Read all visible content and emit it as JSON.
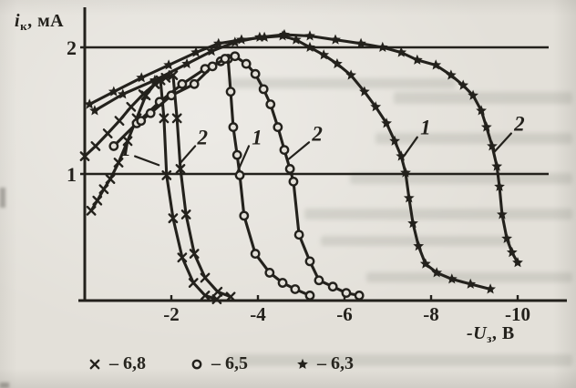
{
  "ink_color": "#23211c",
  "paper_color": "#e3e0d9",
  "chart_data": {
    "type": "line",
    "title": "",
    "ylabel": "iк, мА",
    "xlabel": "-Uз, В",
    "ylabel_parts": {
      "main": "i",
      "sub": "к",
      "unit": ", мА"
    },
    "xlabel_parts": {
      "main": "-U",
      "sub": "з",
      "unit": ", В"
    },
    "xlim": [
      0,
      -11.3
    ],
    "ylim": [
      0,
      2.32
    ],
    "grid": "horizontal gridlines at 1 and 2 mA",
    "x_ticks": [
      {
        "value": -2,
        "label": "-2"
      },
      {
        "value": -4,
        "label": "-4"
      },
      {
        "value": -6,
        "label": "-6"
      },
      {
        "value": -8,
        "label": "-8"
      },
      {
        "value": -10,
        "label": "-10"
      }
    ],
    "y_ticks": [
      {
        "value": 2,
        "label": "2"
      },
      {
        "value": 1,
        "label": "1"
      }
    ],
    "legend_position": "below axis",
    "legend": [
      {
        "marker": "x-cross",
        "label": "– 6,8"
      },
      {
        "marker": "open-circle",
        "label": "– 6,5"
      },
      {
        "marker": "star",
        "label": "– 6,3"
      }
    ],
    "series": [
      {
        "name": "6,8 curve 1",
        "marker": "x-cross",
        "points": [
          [
            -0.15,
            0.71
          ],
          [
            -0.29,
            0.79
          ],
          [
            -0.44,
            0.88
          ],
          [
            -0.59,
            0.96
          ],
          [
            -0.78,
            1.09
          ],
          [
            -0.99,
            1.26
          ],
          [
            -1.2,
            1.44
          ],
          [
            -1.41,
            1.62
          ],
          [
            -1.62,
            1.71
          ],
          [
            -1.75,
            1.74
          ],
          [
            -1.83,
            1.44
          ],
          [
            -1.89,
            0.99
          ],
          [
            -2.04,
            0.65
          ],
          [
            -2.25,
            0.34
          ],
          [
            -2.51,
            0.14
          ],
          [
            -2.78,
            0.04
          ],
          [
            -3.05,
            0.01
          ]
        ]
      },
      {
        "name": "6,8 curve 2",
        "marker": "x-cross",
        "points": [
          [
            0,
            1.14
          ],
          [
            -0.25,
            1.22
          ],
          [
            -0.53,
            1.32
          ],
          [
            -0.8,
            1.42
          ],
          [
            -1.07,
            1.53
          ],
          [
            -1.35,
            1.63
          ],
          [
            -1.62,
            1.71
          ],
          [
            -1.87,
            1.76
          ],
          [
            -2.04,
            1.78
          ],
          [
            -2.13,
            1.44
          ],
          [
            -2.21,
            1.04
          ],
          [
            -2.34,
            0.68
          ],
          [
            -2.53,
            0.37
          ],
          [
            -2.78,
            0.18
          ],
          [
            -3.07,
            0.07
          ],
          [
            -3.37,
            0.03
          ]
        ]
      },
      {
        "name": "6,5 curve 1",
        "marker": "open-circle",
        "points": [
          [
            -0.67,
            1.22
          ],
          [
            -1.2,
            1.4
          ],
          [
            -1.73,
            1.57
          ],
          [
            -2.25,
            1.71
          ],
          [
            -2.78,
            1.83
          ],
          [
            -3.14,
            1.89
          ],
          [
            -3.31,
            1.91
          ],
          [
            -3.37,
            1.65
          ],
          [
            -3.43,
            1.37
          ],
          [
            -3.52,
            1.15
          ],
          [
            -3.58,
            0.99
          ],
          [
            -3.68,
            0.67
          ],
          [
            -3.94,
            0.37
          ],
          [
            -4.27,
            0.22
          ],
          [
            -4.57,
            0.14
          ],
          [
            -4.86,
            0.09
          ],
          [
            -5.2,
            0.04
          ]
        ]
      },
      {
        "name": "6,5 curve 2",
        "marker": "open-circle",
        "points": [
          [
            -1.3,
            1.42
          ],
          [
            -1.52,
            1.48
          ],
          [
            -2.0,
            1.62
          ],
          [
            -2.53,
            1.71
          ],
          [
            -2.95,
            1.85
          ],
          [
            -3.24,
            1.91
          ],
          [
            -3.47,
            1.93
          ],
          [
            -3.73,
            1.87
          ],
          [
            -3.94,
            1.79
          ],
          [
            -4.13,
            1.67
          ],
          [
            -4.29,
            1.55
          ],
          [
            -4.46,
            1.37
          ],
          [
            -4.61,
            1.19
          ],
          [
            -4.74,
            1.04
          ],
          [
            -4.82,
            0.94
          ],
          [
            -4.95,
            0.52
          ],
          [
            -5.2,
            0.31
          ],
          [
            -5.41,
            0.16
          ],
          [
            -5.73,
            0.11
          ],
          [
            -6.04,
            0.06
          ],
          [
            -6.34,
            0.04
          ]
        ]
      },
      {
        "name": "6,3 curve 1",
        "marker": "star",
        "points": [
          [
            -0.11,
            1.55
          ],
          [
            -0.67,
            1.65
          ],
          [
            -1.31,
            1.76
          ],
          [
            -1.94,
            1.86
          ],
          [
            -2.57,
            1.96
          ],
          [
            -3.09,
            2.03
          ],
          [
            -3.62,
            2.06
          ],
          [
            -4.15,
            2.08
          ],
          [
            -4.57,
            2.09
          ],
          [
            -4.88,
            2.06
          ],
          [
            -5.2,
            2.0
          ],
          [
            -5.52,
            1.94
          ],
          [
            -5.83,
            1.87
          ],
          [
            -6.15,
            1.78
          ],
          [
            -6.46,
            1.65
          ],
          [
            -6.72,
            1.53
          ],
          [
            -6.97,
            1.4
          ],
          [
            -7.16,
            1.26
          ],
          [
            -7.31,
            1.14
          ],
          [
            -7.41,
            1.01
          ],
          [
            -7.49,
            0.81
          ],
          [
            -7.58,
            0.61
          ],
          [
            -7.71,
            0.43
          ],
          [
            -7.87,
            0.29
          ],
          [
            -8.13,
            0.22
          ],
          [
            -8.48,
            0.17
          ],
          [
            -8.91,
            0.13
          ],
          [
            -9.37,
            0.09
          ]
        ]
      },
      {
        "name": "6,3 curve 2",
        "marker": "star",
        "points": [
          [
            -0.23,
            1.5
          ],
          [
            -0.88,
            1.63
          ],
          [
            -1.62,
            1.74
          ],
          [
            -2.36,
            1.87
          ],
          [
            -2.93,
            1.97
          ],
          [
            -3.47,
            2.04
          ],
          [
            -4.04,
            2.08
          ],
          [
            -4.61,
            2.1
          ],
          [
            -5.2,
            2.09
          ],
          [
            -5.79,
            2.06
          ],
          [
            -6.38,
            2.03
          ],
          [
            -6.88,
            2.0
          ],
          [
            -7.31,
            1.96
          ],
          [
            -7.68,
            1.9
          ],
          [
            -8.11,
            1.86
          ],
          [
            -8.46,
            1.78
          ],
          [
            -8.74,
            1.7
          ],
          [
            -8.97,
            1.62
          ],
          [
            -9.16,
            1.5
          ],
          [
            -9.28,
            1.37
          ],
          [
            -9.41,
            1.22
          ],
          [
            -9.52,
            1.06
          ],
          [
            -9.58,
            0.9
          ],
          [
            -9.64,
            0.68
          ],
          [
            -9.75,
            0.49
          ],
          [
            -9.87,
            0.38
          ],
          [
            -10.0,
            0.3
          ]
        ]
      }
    ],
    "annotations": [
      {
        "text": "1",
        "label_at": [
          -0.95,
          1.2
        ],
        "leader": [
          [
            -1.16,
            1.14
          ],
          [
            -1.71,
            1.07
          ]
        ]
      },
      {
        "text": "2",
        "label_at": [
          -2.72,
          1.29
        ],
        "leader": [
          [
            -2.55,
            1.22
          ],
          [
            -2.19,
            1.08
          ]
        ]
      },
      {
        "text": "1",
        "label_at": [
          -3.98,
          1.29
        ],
        "leader": [
          [
            -3.79,
            1.22
          ],
          [
            -3.52,
            1.01
          ]
        ]
      },
      {
        "text": "2",
        "label_at": [
          -5.37,
          1.32
        ],
        "leader": [
          [
            -5.18,
            1.25
          ],
          [
            -4.72,
            1.12
          ]
        ]
      },
      {
        "text": "1",
        "label_at": [
          -7.87,
          1.37
        ],
        "leader": [
          [
            -7.68,
            1.29
          ],
          [
            -7.37,
            1.14
          ]
        ]
      },
      {
        "text": "2",
        "label_at": [
          -10.04,
          1.4
        ],
        "leader": [
          [
            -9.85,
            1.32
          ],
          [
            -9.45,
            1.17
          ]
        ]
      }
    ]
  }
}
